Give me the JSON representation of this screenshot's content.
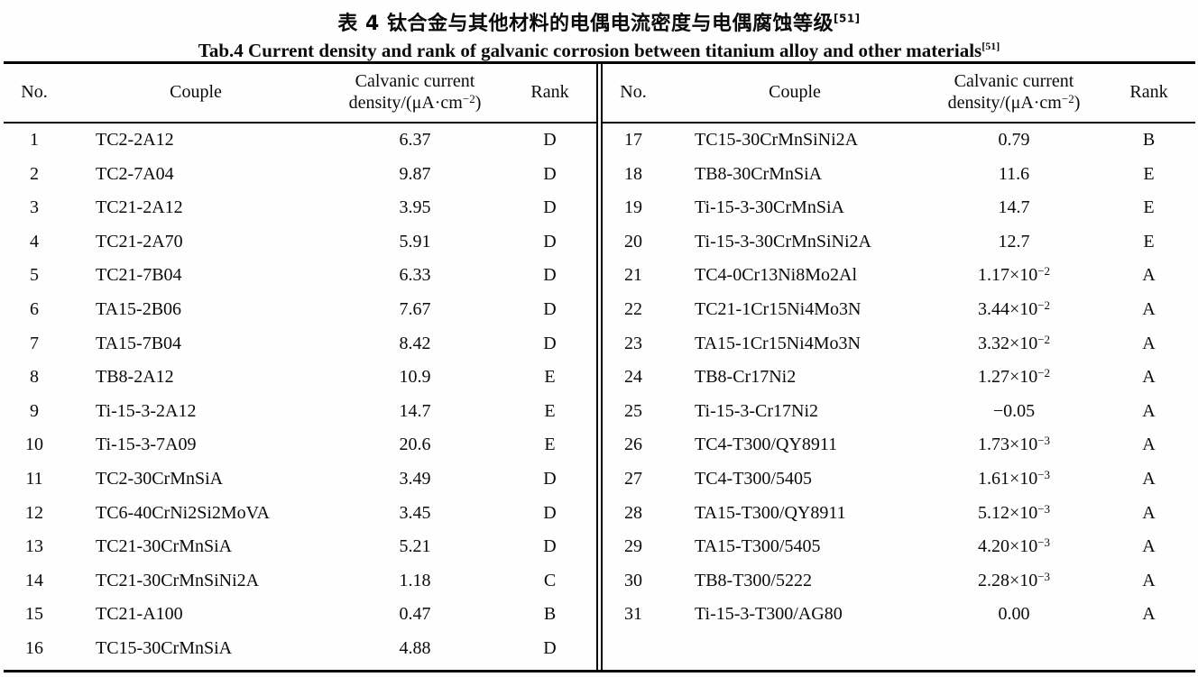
{
  "page": {
    "title_cn": "表 4  钛合金与其他材料的电偶电流密度与电偶腐蚀等级",
    "title_cn_ref": "[51]",
    "title_en": "Tab.4 Current density and rank of galvanic corrosion between titanium alloy and other materials",
    "title_en_ref": "[51]"
  },
  "table": {
    "headers": {
      "no": "No.",
      "couple": "Couple",
      "density_line1": "Calvanic current",
      "density_line2_pre": "density/(μA·cm",
      "density_line2_sup": "−2",
      "density_line2_post": ")",
      "rank": "Rank"
    },
    "halves": [
      {
        "rows": [
          {
            "no": "1",
            "couple": "TC2-2A12",
            "density": "6.37",
            "density_exp": "",
            "rank": "D"
          },
          {
            "no": "2",
            "couple": "TC2-7A04",
            "density": "9.87",
            "density_exp": "",
            "rank": "D"
          },
          {
            "no": "3",
            "couple": "TC21-2A12",
            "density": "3.95",
            "density_exp": "",
            "rank": "D"
          },
          {
            "no": "4",
            "couple": "TC21-2A70",
            "density": "5.91",
            "density_exp": "",
            "rank": "D"
          },
          {
            "no": "5",
            "couple": "TC21-7B04",
            "density": "6.33",
            "density_exp": "",
            "rank": "D"
          },
          {
            "no": "6",
            "couple": "TA15-2B06",
            "density": "7.67",
            "density_exp": "",
            "rank": "D"
          },
          {
            "no": "7",
            "couple": "TA15-7B04",
            "density": "8.42",
            "density_exp": "",
            "rank": "D"
          },
          {
            "no": "8",
            "couple": "TB8-2A12",
            "density": "10.9",
            "density_exp": "",
            "rank": "E"
          },
          {
            "no": "9",
            "couple": "Ti-15-3-2A12",
            "density": "14.7",
            "density_exp": "",
            "rank": "E"
          },
          {
            "no": "10",
            "couple": "Ti-15-3-7A09",
            "density": "20.6",
            "density_exp": "",
            "rank": "E"
          },
          {
            "no": "11",
            "couple": "TC2-30CrMnSiA",
            "density": "3.49",
            "density_exp": "",
            "rank": "D"
          },
          {
            "no": "12",
            "couple": "TC6-40CrNi2Si2MoVA",
            "density": "3.45",
            "density_exp": "",
            "rank": "D"
          },
          {
            "no": "13",
            "couple": "TC21-30CrMnSiA",
            "density": "5.21",
            "density_exp": "",
            "rank": "D"
          },
          {
            "no": "14",
            "couple": "TC21-30CrMnSiNi2A",
            "density": "1.18",
            "density_exp": "",
            "rank": "C"
          },
          {
            "no": "15",
            "couple": "TC21-A100",
            "density": "0.47",
            "density_exp": "",
            "rank": "B"
          },
          {
            "no": "16",
            "couple": "TC15-30CrMnSiA",
            "density": "4.88",
            "density_exp": "",
            "rank": "D"
          }
        ]
      },
      {
        "rows": [
          {
            "no": "17",
            "couple": "TC15-30CrMnSiNi2A",
            "density": "0.79",
            "density_exp": "",
            "rank": "B"
          },
          {
            "no": "18",
            "couple": "TB8-30CrMnSiA",
            "density": "11.6",
            "density_exp": "",
            "rank": "E"
          },
          {
            "no": "19",
            "couple": "Ti-15-3-30CrMnSiA",
            "density": "14.7",
            "density_exp": "",
            "rank": "E"
          },
          {
            "no": "20",
            "couple": "Ti-15-3-30CrMnSiNi2A",
            "density": "12.7",
            "density_exp": "",
            "rank": "E"
          },
          {
            "no": "21",
            "couple": "TC4-0Cr13Ni8Mo2Al",
            "density": "1.17×10",
            "density_exp": "−2",
            "rank": "A"
          },
          {
            "no": "22",
            "couple": "TC21-1Cr15Ni4Mo3N",
            "density": "3.44×10",
            "density_exp": "−2",
            "rank": "A"
          },
          {
            "no": "23",
            "couple": "TA15-1Cr15Ni4Mo3N",
            "density": "3.32×10",
            "density_exp": "−2",
            "rank": "A"
          },
          {
            "no": "24",
            "couple": "TB8-Cr17Ni2",
            "density": "1.27×10",
            "density_exp": "−2",
            "rank": "A"
          },
          {
            "no": "25",
            "couple": "Ti-15-3-Cr17Ni2",
            "density": "−0.05",
            "density_exp": "",
            "rank": "A"
          },
          {
            "no": "26",
            "couple": "TC4-T300/QY8911",
            "density": "1.73×10",
            "density_exp": "−3",
            "rank": "A"
          },
          {
            "no": "27",
            "couple": "TC4-T300/5405",
            "density": "1.61×10",
            "density_exp": "−3",
            "rank": "A"
          },
          {
            "no": "28",
            "couple": "TA15-T300/QY8911",
            "density": "5.12×10",
            "density_exp": "−3",
            "rank": "A"
          },
          {
            "no": "29",
            "couple": "TA15-T300/5405",
            "density": "4.20×10",
            "density_exp": "−3",
            "rank": "A"
          },
          {
            "no": "30",
            "couple": "TB8-T300/5222",
            "density": "2.28×10",
            "density_exp": "−3",
            "rank": "A"
          },
          {
            "no": "31",
            "couple": "Ti-15-3-T300/AG80",
            "density": "0.00",
            "density_exp": "",
            "rank": "A"
          }
        ]
      }
    ]
  }
}
